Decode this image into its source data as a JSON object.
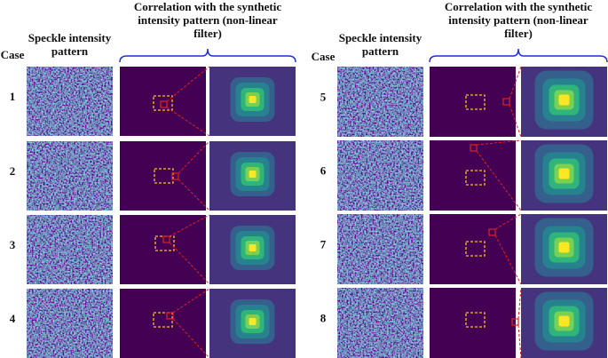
{
  "left": {
    "case_header": "Case",
    "speckle_header": "Speckle intensity pattern",
    "correlation_header": "Correlation with the synthetic intensity pattern (non-linear filter)",
    "cases": [
      "1",
      "2",
      "3",
      "4"
    ]
  },
  "right": {
    "case_header": "Case",
    "speckle_header": "Speckle intensity pattern",
    "correlation_header": "Correlation with the synthetic intensity pattern (non-linear filter)",
    "cases": [
      "5",
      "6",
      "7",
      "8"
    ]
  }
}
